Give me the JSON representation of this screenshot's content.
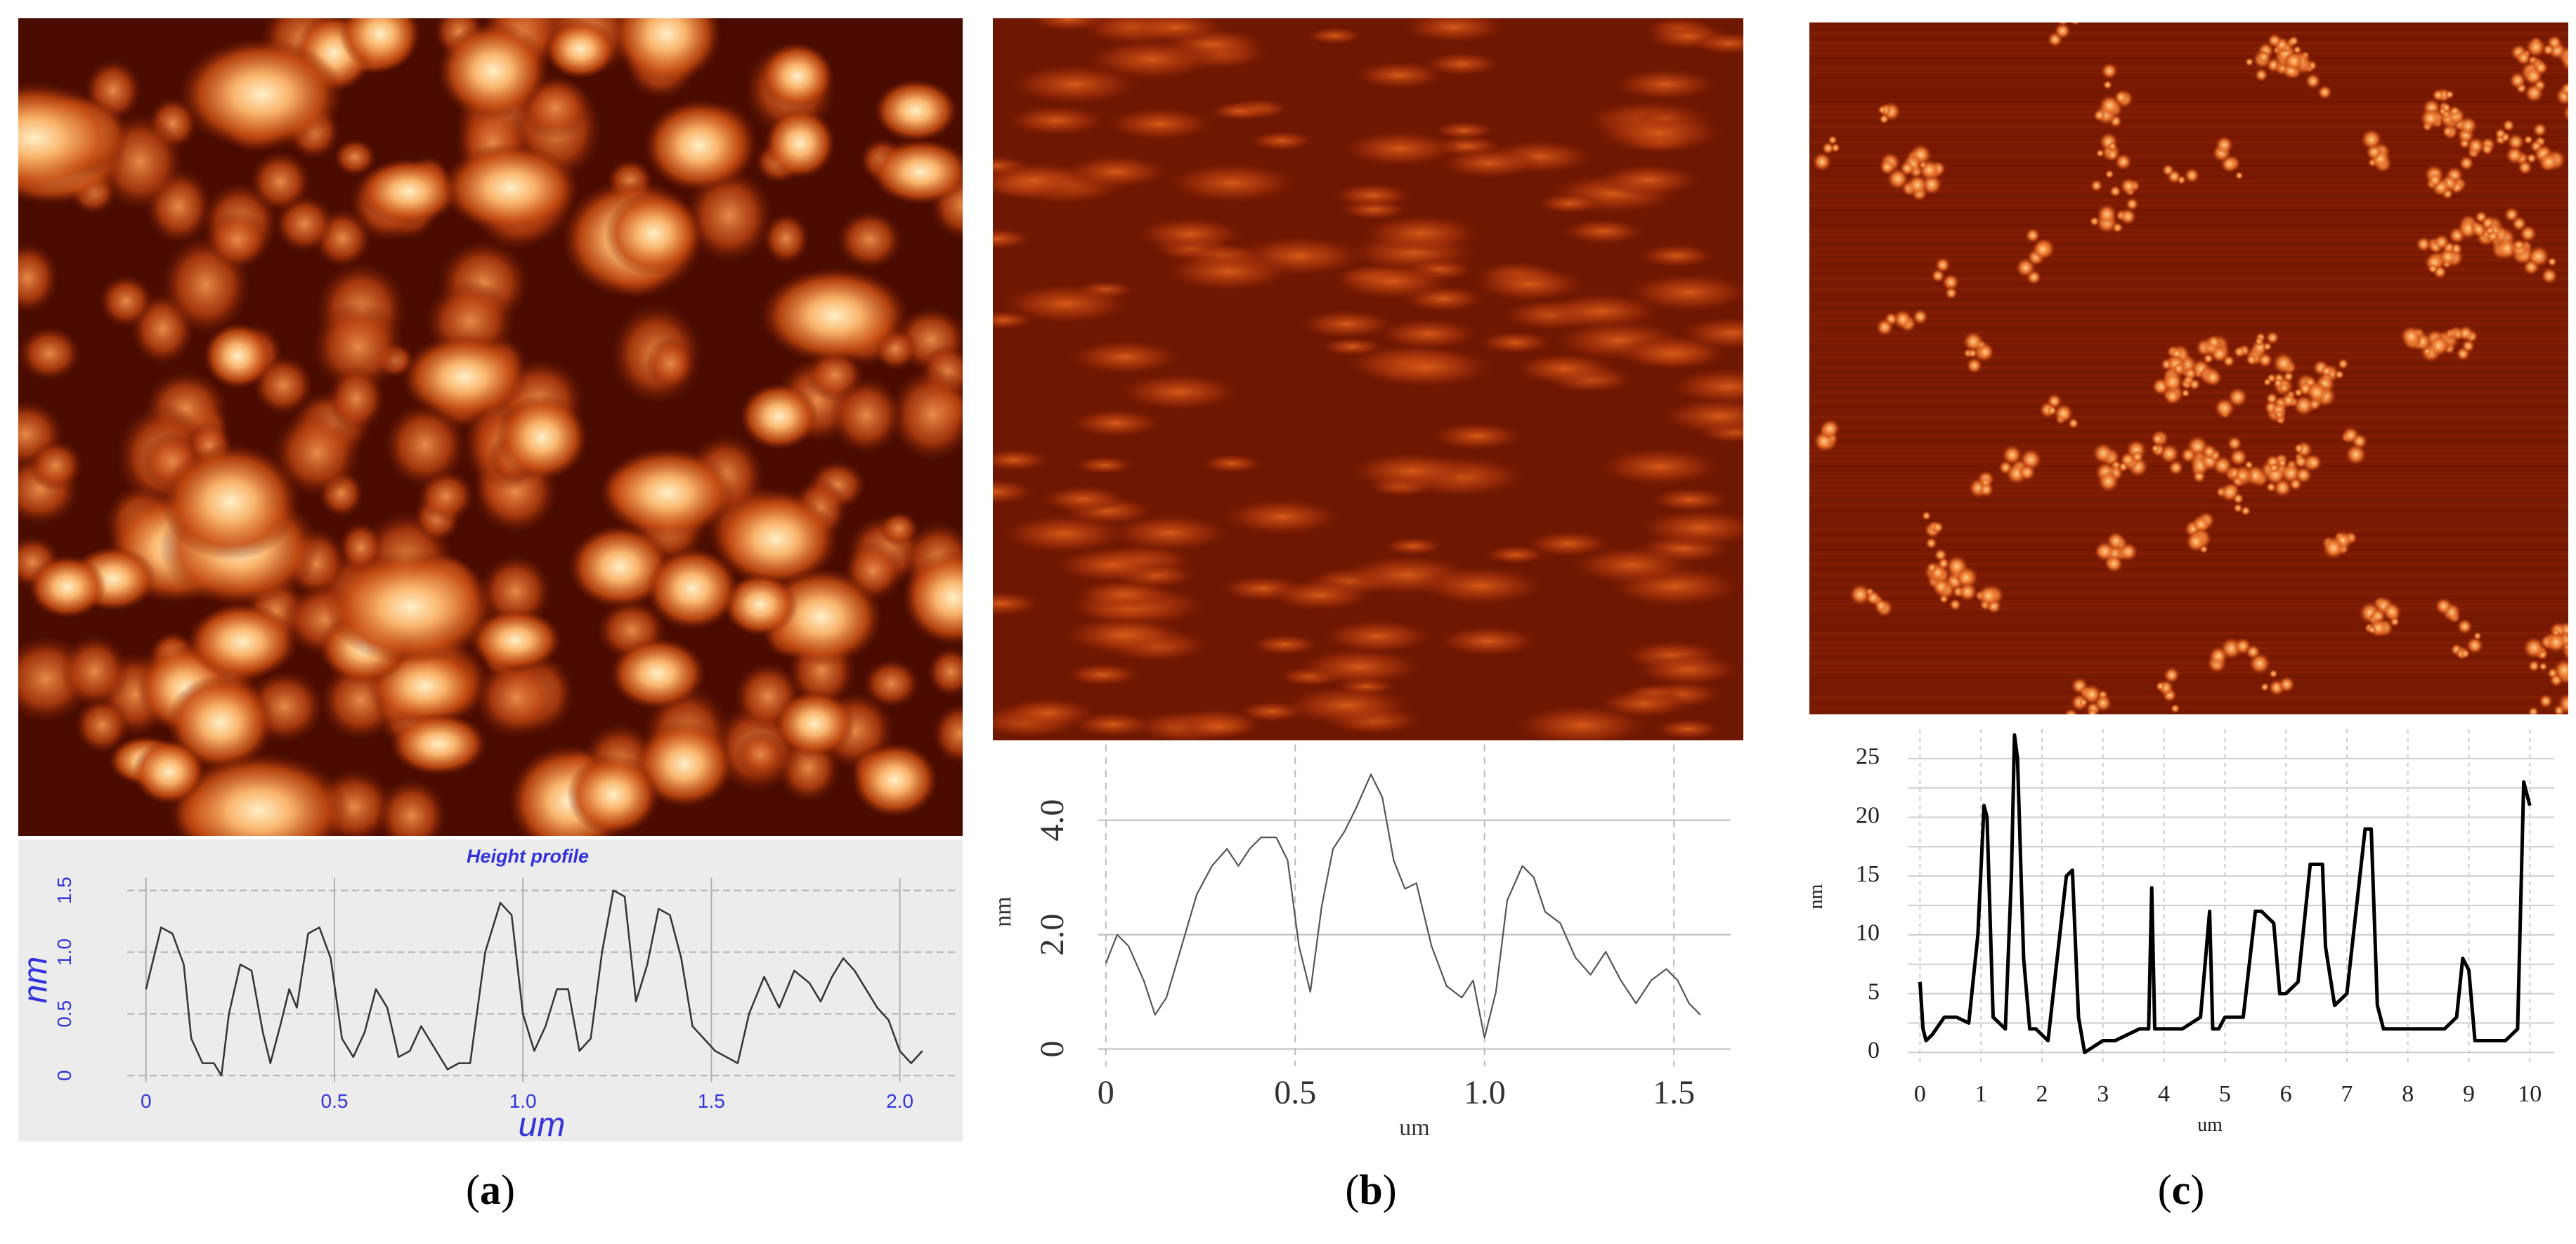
{
  "captions": {
    "a_open": "(",
    "a": "a",
    "a_close": ")",
    "b_open": "(",
    "b": "b",
    "b_close": ")",
    "c_open": "(",
    "c": "c",
    "c_close": ")"
  },
  "colors": {
    "afm_dark": "#3a0700",
    "afm_mid": "#8f2a05",
    "afm_bright": "#ffe6b0",
    "profile_a_label": "#3333dd"
  },
  "chart_data": [
    {
      "panel": "a",
      "type": "line",
      "title": "Height profile",
      "xlabel": "um",
      "ylabel": "nm",
      "xlim": [
        -0.05,
        2.15
      ],
      "ylim": [
        -0.05,
        1.6
      ],
      "xticks": [
        "0",
        "0.5",
        "1.0",
        "1.5",
        "2.0"
      ],
      "xtick_values": [
        0,
        0.5,
        1.0,
        1.5,
        2.0
      ],
      "yticks": [
        "0",
        "0.5",
        "1.0",
        "1.5"
      ],
      "ytick_values": [
        0,
        0.5,
        1.0,
        1.5
      ],
      "x": [
        0.0,
        0.04,
        0.07,
        0.1,
        0.12,
        0.15,
        0.18,
        0.2,
        0.22,
        0.25,
        0.28,
        0.31,
        0.33,
        0.36,
        0.38,
        0.4,
        0.43,
        0.46,
        0.49,
        0.52,
        0.55,
        0.58,
        0.61,
        0.64,
        0.67,
        0.7,
        0.73,
        0.76,
        0.8,
        0.83,
        0.86,
        0.9,
        0.94,
        0.97,
        1.0,
        1.03,
        1.06,
        1.09,
        1.12,
        1.15,
        1.18,
        1.21,
        1.24,
        1.27,
        1.3,
        1.33,
        1.36,
        1.39,
        1.42,
        1.45,
        1.48,
        1.51,
        1.54,
        1.57,
        1.6,
        1.64,
        1.68,
        1.72,
        1.76,
        1.79,
        1.82,
        1.85,
        1.88,
        1.91,
        1.94,
        1.97,
        2.0,
        2.03,
        2.06
      ],
      "y": [
        0.7,
        1.2,
        1.15,
        0.9,
        0.3,
        0.1,
        0.1,
        0.0,
        0.5,
        0.9,
        0.85,
        0.35,
        0.1,
        0.45,
        0.7,
        0.55,
        1.15,
        1.2,
        0.95,
        0.3,
        0.15,
        0.35,
        0.7,
        0.55,
        0.15,
        0.2,
        0.4,
        0.25,
        0.05,
        0.1,
        0.1,
        1.0,
        1.4,
        1.3,
        0.5,
        0.2,
        0.4,
        0.7,
        0.7,
        0.2,
        0.3,
        1.0,
        1.5,
        1.45,
        0.6,
        0.9,
        1.35,
        1.3,
        0.95,
        0.4,
        0.3,
        0.2,
        0.15,
        0.1,
        0.5,
        0.8,
        0.55,
        0.85,
        0.75,
        0.6,
        0.8,
        0.95,
        0.85,
        0.7,
        0.55,
        0.45,
        0.2,
        0.1,
        0.2
      ]
    },
    {
      "panel": "b",
      "type": "line",
      "title": "",
      "xlabel": "um",
      "ylabel": "nm",
      "xlim": [
        -0.02,
        1.65
      ],
      "ylim": [
        -0.3,
        5.1
      ],
      "xticks": [
        "0",
        "0.5",
        "1.0",
        "1.5"
      ],
      "xtick_values": [
        0,
        0.5,
        1.0,
        1.5
      ],
      "yticks": [
        "0",
        "2.0",
        "4.0"
      ],
      "ytick_values": [
        0,
        2.0,
        4.0
      ],
      "x": [
        0.0,
        0.03,
        0.06,
        0.1,
        0.13,
        0.16,
        0.2,
        0.24,
        0.28,
        0.32,
        0.35,
        0.38,
        0.41,
        0.45,
        0.48,
        0.51,
        0.54,
        0.57,
        0.6,
        0.63,
        0.66,
        0.7,
        0.73,
        0.76,
        0.79,
        0.82,
        0.86,
        0.9,
        0.94,
        0.97,
        1.0,
        1.03,
        1.06,
        1.1,
        1.13,
        1.16,
        1.2,
        1.24,
        1.28,
        1.32,
        1.36,
        1.4,
        1.44,
        1.48,
        1.51,
        1.54,
        1.57
      ],
      "y": [
        1.5,
        2.0,
        1.8,
        1.2,
        0.6,
        0.9,
        1.8,
        2.7,
        3.2,
        3.5,
        3.2,
        3.5,
        3.7,
        3.7,
        3.3,
        1.8,
        1.0,
        2.5,
        3.5,
        3.8,
        4.2,
        4.8,
        4.4,
        3.3,
        2.8,
        2.9,
        1.8,
        1.1,
        0.9,
        1.2,
        0.2,
        1.0,
        2.6,
        3.2,
        3.0,
        2.4,
        2.2,
        1.6,
        1.3,
        1.7,
        1.2,
        0.8,
        1.2,
        1.4,
        1.2,
        0.8,
        0.6
      ]
    },
    {
      "panel": "c",
      "type": "line",
      "title": "",
      "xlabel": "um",
      "ylabel": "nm",
      "xlim": [
        -0.2,
        10.4
      ],
      "ylim": [
        -1,
        27.5
      ],
      "xticks": [
        "0",
        "1",
        "2",
        "3",
        "4",
        "5",
        "6",
        "7",
        "8",
        "9",
        "10"
      ],
      "xtick_values": [
        0,
        1,
        2,
        3,
        4,
        5,
        6,
        7,
        8,
        9,
        10
      ],
      "yticks": [
        "0",
        "5",
        "10",
        "15",
        "20",
        "25"
      ],
      "ytick_values": [
        0,
        5,
        10,
        15,
        20,
        25
      ],
      "x": [
        0.0,
        0.05,
        0.1,
        0.2,
        0.4,
        0.6,
        0.8,
        0.95,
        1.05,
        1.1,
        1.2,
        1.4,
        1.5,
        1.55,
        1.6,
        1.7,
        1.8,
        1.9,
        2.1,
        2.4,
        2.5,
        2.6,
        2.7,
        3.0,
        3.2,
        3.6,
        3.75,
        3.8,
        3.85,
        4.0,
        4.3,
        4.6,
        4.75,
        4.8,
        4.9,
        5.0,
        5.3,
        5.5,
        5.6,
        5.8,
        5.9,
        6.0,
        6.2,
        6.4,
        6.6,
        6.65,
        6.8,
        7.0,
        7.3,
        7.4,
        7.5,
        7.6,
        7.8,
        8.2,
        8.6,
        8.8,
        8.9,
        9.0,
        9.1,
        9.3,
        9.6,
        9.8,
        9.9,
        10.0
      ],
      "y": [
        6,
        2,
        1,
        1.5,
        3,
        3,
        2.5,
        10,
        21,
        20,
        3,
        2,
        15,
        27,
        25,
        8,
        2,
        2,
        1,
        15,
        15.5,
        3,
        0,
        1,
        1,
        2,
        2,
        14,
        2,
        2,
        2,
        3,
        12,
        2,
        2,
        3,
        3,
        12,
        12,
        11,
        5,
        5,
        6,
        16,
        16,
        9,
        4,
        5,
        19,
        19,
        4,
        2,
        2,
        2,
        2,
        3,
        8,
        7,
        1,
        1,
        1,
        2,
        23,
        21
      ]
    }
  ]
}
